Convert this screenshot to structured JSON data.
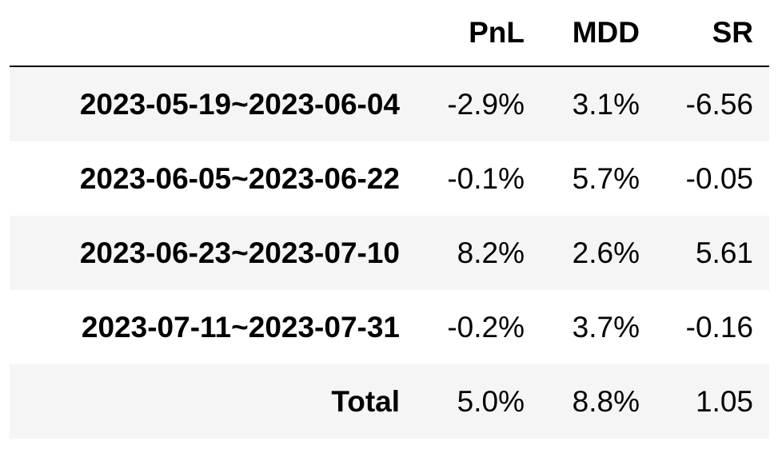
{
  "table": {
    "columns": [
      "PnL",
      "MDD",
      "SR"
    ],
    "rows": [
      {
        "label": "2023-05-19~2023-06-04",
        "cells": [
          "-2.9%",
          "3.1%",
          "-6.56"
        ]
      },
      {
        "label": "2023-06-05~2023-06-22",
        "cells": [
          "-0.1%",
          "5.7%",
          "-0.05"
        ]
      },
      {
        "label": "2023-06-23~2023-07-10",
        "cells": [
          "8.2%",
          "2.6%",
          "5.61"
        ]
      },
      {
        "label": "2023-07-11~2023-07-31",
        "cells": [
          "-0.2%",
          "3.7%",
          "-0.16"
        ]
      },
      {
        "label": "Total",
        "cells": [
          "5.0%",
          "8.8%",
          "1.05"
        ]
      }
    ]
  }
}
